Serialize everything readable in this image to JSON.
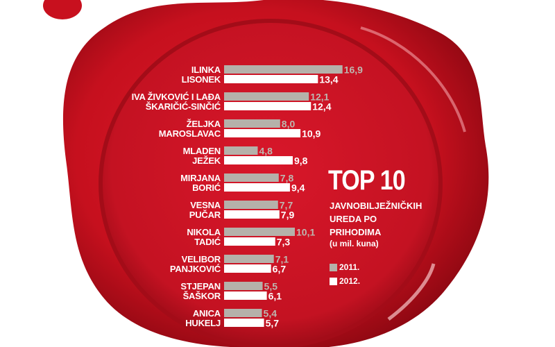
{
  "chart_data": {
    "type": "bar",
    "orientation": "horizontal",
    "title": "TOP 10",
    "subtitle": "JAVNOBILJEŽNIČKIH UREDA PO PRIHODIMA",
    "unit": "(u mil. kuna)",
    "categories": [
      [
        "ILINKA",
        "LISONEK"
      ],
      [
        "IVA ŽIVKOVIĆ I LAĐA",
        "ŠKARIČIĆ-SINČIĆ"
      ],
      [
        "ŽELJKA",
        "MAROSLAVAC"
      ],
      [
        "MLADEN",
        "JEŽEK"
      ],
      [
        "MIRJANA",
        "BORIĆ"
      ],
      [
        "VESNA",
        "PUČAR"
      ],
      [
        "NIKOLA",
        "TADIĆ"
      ],
      [
        "VELIBOR",
        "PANJKOVIĆ"
      ],
      [
        "STJEPAN",
        "ŠAŠKOR"
      ],
      [
        "ANICA",
        "HUKELJ"
      ]
    ],
    "series": [
      {
        "name": "2011.",
        "color": "#b5b1aa",
        "values": [
          16.9,
          12.1,
          8.0,
          4.8,
          7.8,
          7.7,
          10.1,
          7.1,
          5.5,
          5.4
        ],
        "labels": [
          "16,9",
          "12,1",
          "8,0",
          "4,8",
          "7,8",
          "7,7",
          "10,1",
          "7,1",
          "5,5",
          "5,4"
        ]
      },
      {
        "name": "2012.",
        "color": "#ffffff",
        "values": [
          13.4,
          12.4,
          10.9,
          9.8,
          9.4,
          7.9,
          7.3,
          6.7,
          6.1,
          5.7
        ],
        "labels": [
          "13,4",
          "12,4",
          "10,9",
          "9,8",
          "9,4",
          "7,9",
          "7,3",
          "6,7",
          "6,1",
          "5,7"
        ]
      }
    ],
    "legend": "right",
    "grid": false
  },
  "colors": {
    "seal": "#c8101e",
    "seal_dark": "#9c0a14"
  }
}
